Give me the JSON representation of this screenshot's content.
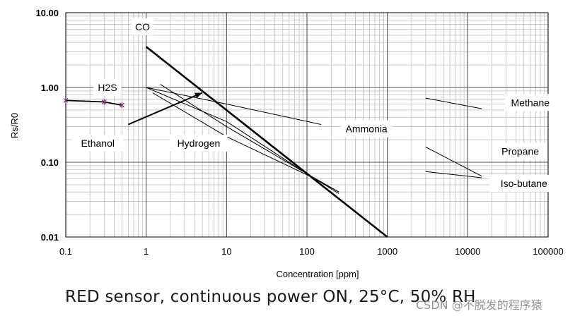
{
  "caption": "RED sensor, continuous power ON, 25°C, 50% RH",
  "watermark": "CSDN @不脱发的程序猿",
  "chart_data": {
    "type": "line",
    "title": "",
    "xlabel": "Concentration [ppm]",
    "ylabel": "Rs/R0",
    "xscale": "log",
    "yscale": "log",
    "xlim": [
      0.1,
      100000
    ],
    "ylim": [
      0.01,
      10
    ],
    "grid": true,
    "x_ticks": [
      {
        "value": 0.1,
        "label": "0.1"
      },
      {
        "value": 1,
        "label": "1"
      },
      {
        "value": 10,
        "label": "10"
      },
      {
        "value": 100,
        "label": "100"
      },
      {
        "value": 1000,
        "label": "1000"
      },
      {
        "value": 10000,
        "label": "10000"
      },
      {
        "value": 100000,
        "label": "100000"
      }
    ],
    "y_ticks": [
      {
        "value": 0.01,
        "label": "0.01"
      },
      {
        "value": 0.1,
        "label": "0.10"
      },
      {
        "value": 1,
        "label": "1.00"
      },
      {
        "value": 10,
        "label": "10.00"
      }
    ],
    "series": [
      {
        "name": "CO",
        "width": "thick",
        "points": [
          [
            1,
            3.5
          ],
          [
            1000,
            0.01
          ]
        ]
      },
      {
        "name": "H2S",
        "width": "medium",
        "color": "#000000",
        "marker_color": "#8b2f8b",
        "points": [
          [
            0.1,
            0.67
          ],
          [
            0.3,
            0.64
          ],
          [
            0.5,
            0.58
          ]
        ]
      },
      {
        "name": "Ammonia",
        "width": "thin",
        "points": [
          [
            1,
            1.0
          ],
          [
            10,
            0.6
          ],
          [
            150,
            0.32
          ]
        ]
      },
      {
        "name": "Hydrogen",
        "width": "thin",
        "points": [
          [
            1.5,
            1.1
          ],
          [
            10,
            0.3
          ],
          [
            100,
            0.07
          ],
          [
            250,
            0.038
          ]
        ]
      },
      {
        "name": "Hydrogen-lower",
        "width": "thin",
        "points": [
          [
            1.2,
            0.85
          ],
          [
            10,
            0.22
          ],
          [
            100,
            0.068
          ],
          [
            250,
            0.04
          ]
        ]
      },
      {
        "name": "Ethanol",
        "width": "thin",
        "points": [
          [
            1,
            1.0
          ],
          [
            10,
            0.35
          ],
          [
            100,
            0.07
          ],
          [
            250,
            0.04
          ]
        ]
      },
      {
        "name": "Methane",
        "width": "thin",
        "points": [
          [
            3000,
            0.72
          ],
          [
            15000,
            0.52
          ]
        ]
      },
      {
        "name": "Propane",
        "width": "thin",
        "points": [
          [
            3000,
            0.16
          ],
          [
            15000,
            0.065
          ]
        ]
      },
      {
        "name": "Iso-butane",
        "width": "thin",
        "points": [
          [
            3000,
            0.075
          ],
          [
            15000,
            0.062
          ]
        ]
      }
    ],
    "labels": [
      {
        "text": "CO",
        "x": 0.9,
        "y": 6.5,
        "boxed": true
      },
      {
        "text": "H2S",
        "x": 0.33,
        "y": 1.0,
        "boxed": true
      },
      {
        "text": "Ethanol",
        "x": 0.25,
        "y": 0.18,
        "boxed": true
      },
      {
        "text": "Hydrogen",
        "x": 4.5,
        "y": 0.18,
        "boxed": true
      },
      {
        "text": "Ammonia",
        "x": 550,
        "y": 0.28,
        "boxed": true
      },
      {
        "text": "Methane",
        "x": 60000,
        "y": 0.63,
        "boxed": true
      },
      {
        "text": "Propane",
        "x": 45000,
        "y": 0.14,
        "boxed": true
      },
      {
        "text": "Iso-butane",
        "x": 50000,
        "y": 0.052,
        "boxed": true
      }
    ],
    "annotation_arrow": {
      "from": [
        0.6,
        0.32
      ],
      "to": [
        5,
        0.85
      ]
    }
  }
}
